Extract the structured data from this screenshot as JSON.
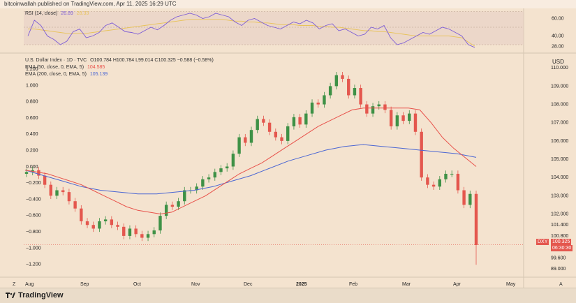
{
  "header": {
    "attribution": "bitcoinwallah published on TradingView.com, Apr 11, 2025 16:29 UTC"
  },
  "rsi_legend": {
    "label": "RSI (14, close)",
    "value1": "26.89",
    "value2": "28.33"
  },
  "main_legend": {
    "symbol": "U.S. Dollar Index · 1D · TVC",
    "ohlc": "O100.784  H100.784  L99.014  C100.325  −0.588 (−0.58%)",
    "ema50_label": "EMA (50, close, 0, EMA, 5)",
    "ema50_value": "104.585",
    "ema200_label": "EMA (200, close, 0, EMA, 5)",
    "ema200_value": "105.139"
  },
  "currency": "USD",
  "price_badge": {
    "ticker": "DXY",
    "price": "100.325",
    "countdown": "06:30:30"
  },
  "bottom": {
    "brand": "TradingView",
    "zoom_corner": "Z",
    "auto_corner": "A"
  },
  "colors": {
    "background": "#f4e3cf",
    "bull": "#3e9146",
    "bear": "#e4574e",
    "ema50": "#e8524b",
    "ema200": "#4a66d3",
    "rsi": "#7b5bd6",
    "rsi_ma": "#e8c35a"
  },
  "chart_data": [
    {
      "type": "line",
      "title": "RSI (14, close)",
      "y_ticks": [
        "60.00",
        "40.00",
        "28.00"
      ],
      "ylim": [
        22,
        70
      ],
      "series": [
        {
          "name": "RSI",
          "values": [
            40,
            58,
            52,
            40,
            36,
            30,
            34,
            45,
            48,
            38,
            40,
            44,
            52,
            55,
            50,
            45,
            44,
            42,
            46,
            50,
            47,
            52,
            58,
            62,
            64,
            66,
            64,
            60,
            62,
            66,
            64,
            62,
            56,
            52,
            58,
            60,
            56,
            52,
            50,
            48,
            52,
            56,
            54,
            58,
            55,
            48,
            52,
            54,
            46,
            48,
            44,
            40,
            42,
            50,
            48,
            52,
            38,
            30,
            32,
            36,
            40,
            44,
            42,
            46,
            50,
            48,
            44,
            40,
            30,
            26.89
          ]
        },
        {
          "name": "MA",
          "values": [
            48,
            48,
            47,
            46,
            45,
            44,
            43,
            43,
            43,
            43,
            44,
            45,
            46,
            47,
            48,
            49,
            50,
            51,
            52,
            53,
            54,
            55,
            56,
            57,
            58,
            59,
            59,
            59,
            59,
            59,
            59,
            58,
            57,
            57,
            56,
            56,
            55,
            55,
            54,
            53,
            53,
            53,
            52,
            52,
            52,
            51,
            51,
            50,
            50,
            49,
            48,
            47,
            46,
            46,
            45,
            45,
            44,
            43,
            42,
            41,
            40,
            40,
            40,
            40,
            40,
            40,
            39,
            38,
            33,
            28.33
          ]
        }
      ]
    },
    {
      "type": "line",
      "title": "U.S. Dollar Index · 1D · TVC",
      "ylabel": "USD",
      "x_ticks": [
        "Aug",
        "Sep",
        "Oct",
        "Nov",
        "Dec",
        "2025",
        "Feb",
        "Mar",
        "Apr",
        "May"
      ],
      "y_ticks_left": [
        "1.200",
        "1.000",
        "0.800",
        "0.600",
        "0.400",
        "0.200",
        "0.000",
        "−0.200",
        "−0.400",
        "−0.600",
        "−0.800",
        "−1.000",
        "−1.200"
      ],
      "y_ticks_right": [
        "110.000",
        "109.000",
        "108.000",
        "107.000",
        "106.000",
        "105.000",
        "104.000",
        "103.000",
        "102.000",
        "101.400",
        "100.800",
        "99.600",
        "89.000"
      ],
      "ylim": [
        99.0,
        110.2
      ],
      "series": [
        {
          "name": "Close",
          "values": [
            104.3,
            104.4,
            104.1,
            103.6,
            103.0,
            103.3,
            103.2,
            102.7,
            102.3,
            101.6,
            101.4,
            101.2,
            101.6,
            101.7,
            101.4,
            101.3,
            100.8,
            101.2,
            100.9,
            100.7,
            100.9,
            101.1,
            101.9,
            102.5,
            102.4,
            102.7,
            103.3,
            103.3,
            103.5,
            103.9,
            104.0,
            104.3,
            104.5,
            104.6,
            105.3,
            106.2,
            105.9,
            106.6,
            107.2,
            107.0,
            106.5,
            106.2,
            106.0,
            106.8,
            107.3,
            106.9,
            107.5,
            108.1,
            108.0,
            108.5,
            109.0,
            109.6,
            109.4,
            108.5,
            108.9,
            108.0,
            107.5,
            107.9,
            108.0,
            107.7,
            106.8,
            107.4,
            107.1,
            107.5,
            106.5,
            104.0,
            103.6,
            103.5,
            103.9,
            104.2,
            104.2,
            103.3,
            102.5,
            103.1,
            100.3
          ]
        },
        {
          "name": "EMA (50, close, 0, EMA, 5)",
          "values": [
            104.4,
            104.3,
            104.2,
            104.0,
            103.8,
            103.6,
            103.3,
            103.0,
            102.7,
            102.4,
            102.2,
            102.1,
            102.0,
            102.1,
            102.4,
            102.7,
            103.0,
            103.4,
            103.8,
            104.2,
            104.5,
            104.8,
            105.2,
            105.6,
            106.0,
            106.4,
            106.8,
            107.1,
            107.4,
            107.7,
            107.8,
            107.8,
            107.8,
            107.8,
            107.8,
            107.7,
            107.0,
            106.2,
            105.6,
            105.1,
            104.6
          ]
        },
        {
          "name": "EMA (200, close, 0, EMA, 5)",
          "values": [
            104.4,
            104.1,
            103.8,
            103.5,
            103.3,
            103.2,
            103.1,
            103.1,
            103.2,
            103.3,
            103.5,
            103.8,
            104.1,
            104.5,
            104.9,
            105.2,
            105.5,
            105.7,
            105.8,
            105.7,
            105.6,
            105.5,
            105.4,
            105.3,
            105.1
          ]
        }
      ],
      "last_price": 100.325
    }
  ]
}
